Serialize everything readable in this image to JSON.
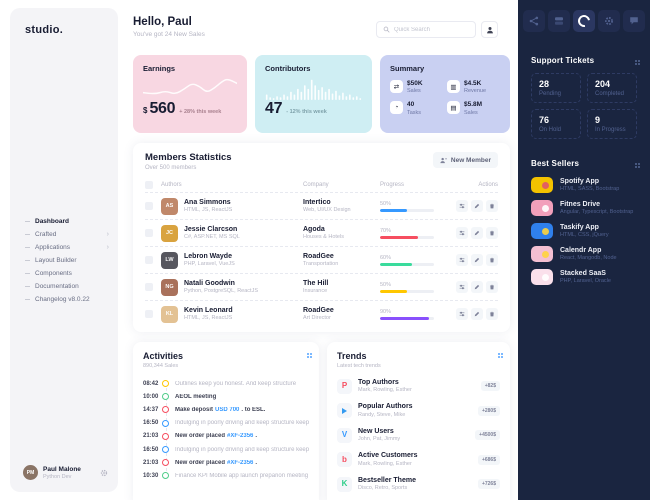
{
  "app": {
    "logo": "studio.",
    "rail_bg": "#1a2540",
    "accent_blue": "#3699ff"
  },
  "sidebar": {
    "items": [
      {
        "label": "Dashboard",
        "active": true,
        "chevron": false
      },
      {
        "label": "Crafted",
        "active": false,
        "chevron": true
      },
      {
        "label": "Applications",
        "active": false,
        "chevron": true
      },
      {
        "label": "Layout Builder",
        "active": false,
        "chevron": false
      },
      {
        "label": "Components",
        "active": false,
        "chevron": false
      },
      {
        "label": "Documentation",
        "active": false,
        "chevron": false
      },
      {
        "label": "Changelog v8.0.22",
        "active": false,
        "chevron": false
      }
    ],
    "user": {
      "name": "Paul Malone",
      "role": "Python Dev",
      "initials": "PM",
      "avatar_color": "#8a7466"
    }
  },
  "header": {
    "greeting": "Hello, Paul",
    "subtitle": "You've got 24 New Sales",
    "search_placeholder": "Quick Search",
    "icons": [
      "search-icon",
      "account-person-icon"
    ]
  },
  "cards": {
    "earnings": {
      "title": "Earnings",
      "currency": "$",
      "value": "560",
      "delta": "+ 28% this week",
      "bg": "#f8d7e2"
    },
    "contributors": {
      "title": "Contributors",
      "value": "47",
      "delta": "- 12% this week",
      "bg": "#cfeef3"
    },
    "summary": {
      "title": "Summary",
      "bg": "#c9d0f2",
      "items": [
        {
          "icon": "shuffle-icon",
          "glyph": "⇄",
          "value": "$50K",
          "label": "Sales"
        },
        {
          "icon": "chart-icon",
          "glyph": "▥",
          "value": "$4.5K",
          "label": "Revenue"
        },
        {
          "icon": "pie-icon",
          "glyph": "◔",
          "value": "40",
          "label": "Tasks"
        },
        {
          "icon": "wallet-icon",
          "glyph": "▤",
          "value": "$5.8M",
          "label": "Sales"
        }
      ]
    }
  },
  "members": {
    "title": "Members Statistics",
    "subtitle": "Over 500 members",
    "button": "New Member",
    "columns": {
      "authors": "Authors",
      "company": "Company",
      "progress": "Progress",
      "actions": "Actions"
    },
    "action_icons": [
      "sliders-settings-icon",
      "edit-pencil-icon",
      "delete-trash-icon"
    ],
    "rows": [
      {
        "name": "Ana Simmons",
        "skills": "HTML, JS, ReactJS",
        "company": "Intertico",
        "industry": "Web, UI/UX Design",
        "progress": "50%",
        "progress_color": "#3699ff",
        "initials": "AS",
        "avatar_color": "#c0886a"
      },
      {
        "name": "Jessie Clarcson",
        "skills": "C#, ASP.NET, MS SQL",
        "company": "Agoda",
        "industry": "Houses & Hotels",
        "progress": "70%",
        "progress_color": "#f64e60",
        "initials": "JC",
        "avatar_color": "#d9a33f"
      },
      {
        "name": "Lebron Wayde",
        "skills": "PHP, Laravel, VueJS",
        "company": "RoadGee",
        "industry": "Transportation",
        "progress": "60%",
        "progress_color": "#3adb9c",
        "initials": "LW",
        "avatar_color": "#57575f"
      },
      {
        "name": "Natali Goodwin",
        "skills": "Python, PostgreSQL, ReactJS",
        "company": "The Hill",
        "industry": "Insurance",
        "progress": "50%",
        "progress_color": "#ffc700",
        "initials": "NG",
        "avatar_color": "#a9715b"
      },
      {
        "name": "Kevin Leonard",
        "skills": "HTML, JS, ReactJS",
        "company": "RoadGee",
        "industry": "Art Director",
        "progress": "90%",
        "progress_color": "#8950fc",
        "initials": "KL",
        "avatar_color": "#e3c294"
      }
    ]
  },
  "activities": {
    "title": "Activities",
    "subtitle": "890,344 Sales",
    "items": [
      {
        "time": "08:42",
        "color": "#ffc700",
        "text": "Outlines keep you honest. And keep structure",
        "muted": true
      },
      {
        "time": "10:00",
        "color": "#50cd89",
        "text": "AEOL meeting",
        "muted": false
      },
      {
        "time": "14:37",
        "color": "#f64e60",
        "text": "Make deposit",
        "link": "USD 700",
        "after": ". to ESL.",
        "muted": false
      },
      {
        "time": "16:50",
        "color": "#3699ff",
        "text": "Indulging in poorly driving and keep structure keep great",
        "muted": true
      },
      {
        "time": "21:03",
        "color": "#f64e60",
        "text": "New order placed",
        "link": "#XF-2356",
        "after": ".",
        "muted": false
      },
      {
        "time": "16:50",
        "color": "#3699ff",
        "text": "Indulging in poorly driving and keep structure keep great",
        "muted": true
      },
      {
        "time": "21:03",
        "color": "#f64e60",
        "text": "New order placed",
        "link": "#XF-2356",
        "after": ".",
        "muted": false
      },
      {
        "time": "10:30",
        "color": "#50cd89",
        "text": "Finance KPI Mobile app launch preparion meeting",
        "muted": true
      }
    ]
  },
  "trends": {
    "title": "Trends",
    "subtitle": "Latest tech trends",
    "items": [
      {
        "icon": "producthunt-icon",
        "letter": "P",
        "color": "#f64e60",
        "title": "Top Authors",
        "names": "Mark, Rowling, Esther",
        "badge": "+82$"
      },
      {
        "icon": "telegram-icon",
        "letter": "",
        "shape": "triangle",
        "color": "#339af0",
        "title": "Popular Authors",
        "names": "Randy, Steve, Mike",
        "badge": "+280$"
      },
      {
        "icon": "vimeo-icon",
        "letter": "V",
        "color": "#3699ff",
        "title": "New Users",
        "names": "John, Pat, Jimmy",
        "badge": "+4500$"
      },
      {
        "icon": "bebo-icon",
        "letter": "b",
        "color": "#f64e60",
        "title": "Active Customers",
        "names": "Mark, Rowling, Esther",
        "badge": "+686$"
      },
      {
        "icon": "kickstarter-icon",
        "letter": "K",
        "color": "#2ece89",
        "title": "Bestseller Theme",
        "names": "Disco, Retro, Sports",
        "badge": "+726$"
      }
    ]
  },
  "rail": {
    "toolbar": [
      "share-icon",
      "layout-icon",
      "brand-spinner-icon",
      "gear-icon",
      "chat-icon"
    ],
    "active_index": 2,
    "support": {
      "title": "Support Tickets",
      "stats": [
        {
          "value": "28",
          "label": "Pending"
        },
        {
          "value": "204",
          "label": "Completed"
        },
        {
          "value": "76",
          "label": "On Hold"
        },
        {
          "value": "9",
          "label": "In Progress"
        }
      ]
    },
    "best_sellers": {
      "title": "Best Sellers",
      "items": [
        {
          "title": "Spotify App",
          "subtitle": "HTML, SASS, Bootstrap",
          "thumb_color": "#f3c200",
          "accent_color": "#e0556a"
        },
        {
          "title": "Fitnes Drive",
          "subtitle": "Angular, Typescript, Bootstrap",
          "thumb_color": "#f2a0bb",
          "accent_color": "#ffffff"
        },
        {
          "title": "Taskify App",
          "subtitle": "HTML, CSS, jQuery",
          "thumb_color": "#2f80ed",
          "accent_color": "#ffd43b"
        },
        {
          "title": "Calendr App",
          "subtitle": "React, Mangodb, Node",
          "thumb_color": "#f4bfd2",
          "accent_color": "#ffd43b"
        },
        {
          "title": "Stacked SaaS",
          "subtitle": "PHP, Laravel, Oracle",
          "thumb_color": "#fae0eb",
          "accent_color": "#ffffff"
        }
      ]
    }
  },
  "chart_data": [
    {
      "type": "line",
      "title": "Earnings weekly trend",
      "series_color": "#ffffff",
      "points": [
        [
          0,
          18
        ],
        [
          12,
          20
        ],
        [
          24,
          16
        ],
        [
          34,
          20
        ],
        [
          44,
          14
        ],
        [
          52,
          8
        ],
        [
          60,
          11
        ],
        [
          68,
          18
        ],
        [
          76,
          13
        ],
        [
          84,
          6
        ],
        [
          90,
          3
        ],
        [
          100,
          8
        ]
      ],
      "ylim": [
        0,
        26
      ],
      "grid": false
    },
    {
      "type": "bar",
      "title": "Contributors activity",
      "bar_color": "#ffffff",
      "values": [
        6,
        3,
        2,
        4,
        3,
        6,
        4,
        9,
        6,
        12,
        9,
        16,
        12,
        22,
        16,
        11,
        14,
        9,
        12,
        7,
        10,
        5,
        8,
        4,
        6,
        3,
        4,
        2
      ],
      "ylim": [
        0,
        24
      ],
      "grid": false
    }
  ]
}
